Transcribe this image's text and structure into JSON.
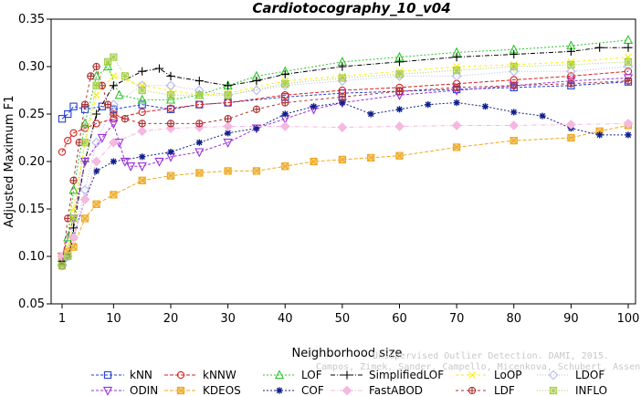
{
  "chart_data": {
    "type": "line",
    "title": "Cardiotocography_10_v04",
    "xlabel": "Neighborhood size",
    "ylabel": "Adjusted Maximum F1",
    "xlim": [
      1,
      100
    ],
    "ylim": [
      0.05,
      0.35
    ],
    "xticks": [
      1,
      10,
      20,
      30,
      40,
      50,
      60,
      70,
      80,
      90,
      100
    ],
    "yticks": [
      0.05,
      0.1,
      0.15,
      0.2,
      0.25,
      0.3,
      0.35
    ],
    "ytick_labels": [
      "0.05",
      "0.10",
      "0.15",
      "0.20",
      "0.25",
      "0.30",
      "0.35"
    ],
    "grid": false,
    "legend_position": "bottom",
    "watermark": {
      "line1": "Unsupervised Outlier Detection. DAMI, 2015.",
      "line2": "Campos, Zimek, Sander, Campello, Micenkova, Schubert, Assent, Houle"
    },
    "series": [
      {
        "name": "kNN",
        "color": "#1f3fd6",
        "marker": "square",
        "points": [
          [
            1,
            0.245
          ],
          [
            2,
            0.25
          ],
          [
            3,
            0.258
          ],
          [
            5,
            0.255
          ],
          [
            8,
            0.258
          ],
          [
            10,
            0.255
          ],
          [
            15,
            0.26
          ],
          [
            20,
            0.255
          ],
          [
            25,
            0.26
          ],
          [
            30,
            0.262
          ],
          [
            40,
            0.268
          ],
          [
            50,
            0.272
          ],
          [
            60,
            0.274
          ],
          [
            70,
            0.276
          ],
          [
            80,
            0.278
          ],
          [
            90,
            0.28
          ],
          [
            100,
            0.284
          ]
        ]
      },
      {
        "name": "kNNW",
        "color": "#d92020",
        "marker": "circle",
        "points": [
          [
            1,
            0.21
          ],
          [
            2,
            0.222
          ],
          [
            3,
            0.23
          ],
          [
            5,
            0.235
          ],
          [
            7,
            0.24
          ],
          [
            10,
            0.245
          ],
          [
            15,
            0.252
          ],
          [
            20,
            0.256
          ],
          [
            25,
            0.26
          ],
          [
            30,
            0.262
          ],
          [
            40,
            0.27
          ],
          [
            50,
            0.275
          ],
          [
            60,
            0.278
          ],
          [
            70,
            0.282
          ],
          [
            80,
            0.286
          ],
          [
            90,
            0.29
          ],
          [
            100,
            0.295
          ]
        ]
      },
      {
        "name": "LOF",
        "color": "#2fc42f",
        "marker": "triangle-up",
        "points": [
          [
            1,
            0.095
          ],
          [
            2,
            0.12
          ],
          [
            3,
            0.17
          ],
          [
            5,
            0.24
          ],
          [
            7,
            0.29
          ],
          [
            9,
            0.3
          ],
          [
            11,
            0.27
          ],
          [
            15,
            0.265
          ],
          [
            20,
            0.265
          ],
          [
            25,
            0.27
          ],
          [
            30,
            0.28
          ],
          [
            35,
            0.29
          ],
          [
            40,
            0.295
          ],
          [
            50,
            0.305
          ],
          [
            60,
            0.31
          ],
          [
            70,
            0.315
          ],
          [
            80,
            0.318
          ],
          [
            90,
            0.322
          ],
          [
            100,
            0.328
          ]
        ]
      },
      {
        "name": "SimplifiedLOF",
        "color": "#000000",
        "marker": "plus",
        "points": [
          [
            1,
            0.095
          ],
          [
            2,
            0.1
          ],
          [
            3,
            0.13
          ],
          [
            5,
            0.2
          ],
          [
            7,
            0.25
          ],
          [
            10,
            0.28
          ],
          [
            15,
            0.295
          ],
          [
            18,
            0.298
          ],
          [
            20,
            0.29
          ],
          [
            25,
            0.285
          ],
          [
            30,
            0.28
          ],
          [
            35,
            0.285
          ],
          [
            40,
            0.292
          ],
          [
            50,
            0.3
          ],
          [
            60,
            0.305
          ],
          [
            70,
            0.31
          ],
          [
            80,
            0.313
          ],
          [
            90,
            0.316
          ],
          [
            95,
            0.32
          ],
          [
            100,
            0.32
          ]
        ]
      },
      {
        "name": "LoOP",
        "color": "#ffee00",
        "marker": "x",
        "points": [
          [
            1,
            0.09
          ],
          [
            2,
            0.11
          ],
          [
            3,
            0.15
          ],
          [
            5,
            0.22
          ],
          [
            7,
            0.27
          ],
          [
            10,
            0.29
          ],
          [
            15,
            0.28
          ],
          [
            20,
            0.275
          ],
          [
            25,
            0.27
          ],
          [
            30,
            0.272
          ],
          [
            40,
            0.285
          ],
          [
            50,
            0.29
          ],
          [
            60,
            0.295
          ],
          [
            70,
            0.3
          ],
          [
            80,
            0.302
          ],
          [
            90,
            0.305
          ],
          [
            100,
            0.31
          ]
        ]
      },
      {
        "name": "LDOF",
        "color": "#b8b8f0",
        "marker": "diamond",
        "points": [
          [
            1,
            0.09
          ],
          [
            2,
            0.1
          ],
          [
            3,
            0.12
          ],
          [
            5,
            0.17
          ],
          [
            7,
            0.22
          ],
          [
            10,
            0.26
          ],
          [
            15,
            0.28
          ],
          [
            20,
            0.28
          ],
          [
            25,
            0.275
          ],
          [
            30,
            0.27
          ],
          [
            35,
            0.275
          ],
          [
            40,
            0.28
          ],
          [
            50,
            0.285
          ],
          [
            60,
            0.29
          ],
          [
            70,
            0.29
          ],
          [
            80,
            0.295
          ],
          [
            90,
            0.295
          ],
          [
            100,
            0.3
          ]
        ]
      },
      {
        "name": "ODIN",
        "color": "#9b30d9",
        "marker": "triangle-down",
        "points": [
          [
            1,
            0.1
          ],
          [
            3,
            0.14
          ],
          [
            5,
            0.2
          ],
          [
            8,
            0.225
          ],
          [
            10,
            0.24
          ],
          [
            11,
            0.22
          ],
          [
            12,
            0.2
          ],
          [
            13,
            0.195
          ],
          [
            15,
            0.195
          ],
          [
            18,
            0.2
          ],
          [
            20,
            0.205
          ],
          [
            25,
            0.21
          ],
          [
            30,
            0.22
          ],
          [
            35,
            0.235
          ],
          [
            40,
            0.245
          ],
          [
            45,
            0.255
          ],
          [
            50,
            0.262
          ],
          [
            60,
            0.27
          ],
          [
            70,
            0.275
          ],
          [
            80,
            0.28
          ],
          [
            90,
            0.285
          ],
          [
            100,
            0.288
          ]
        ]
      },
      {
        "name": "KDEOS",
        "color": "#f0a820",
        "marker": "square-x",
        "points": [
          [
            1,
            0.1
          ],
          [
            2,
            0.105
          ],
          [
            3,
            0.11
          ],
          [
            5,
            0.14
          ],
          [
            7,
            0.155
          ],
          [
            10,
            0.165
          ],
          [
            15,
            0.18
          ],
          [
            20,
            0.185
          ],
          [
            25,
            0.188
          ],
          [
            30,
            0.19
          ],
          [
            35,
            0.19
          ],
          [
            40,
            0.195
          ],
          [
            45,
            0.2
          ],
          [
            50,
            0.202
          ],
          [
            55,
            0.204
          ],
          [
            60,
            0.206
          ],
          [
            70,
            0.215
          ],
          [
            80,
            0.222
          ],
          [
            90,
            0.225
          ],
          [
            95,
            0.232
          ],
          [
            100,
            0.238
          ]
        ]
      },
      {
        "name": "COF",
        "color": "#10208a",
        "marker": "star",
        "points": [
          [
            1,
            0.092
          ],
          [
            2,
            0.1
          ],
          [
            3,
            0.12
          ],
          [
            5,
            0.16
          ],
          [
            7,
            0.19
          ],
          [
            10,
            0.2
          ],
          [
            15,
            0.205
          ],
          [
            20,
            0.21
          ],
          [
            25,
            0.22
          ],
          [
            30,
            0.23
          ],
          [
            35,
            0.235
          ],
          [
            40,
            0.25
          ],
          [
            45,
            0.258
          ],
          [
            50,
            0.262
          ],
          [
            55,
            0.25
          ],
          [
            60,
            0.255
          ],
          [
            65,
            0.26
          ],
          [
            70,
            0.262
          ],
          [
            75,
            0.258
          ],
          [
            80,
            0.252
          ],
          [
            85,
            0.248
          ],
          [
            90,
            0.235
          ],
          [
            95,
            0.228
          ],
          [
            100,
            0.228
          ]
        ]
      },
      {
        "name": "FastABOD",
        "color": "#f5b8e0",
        "marker": "diamond-filled",
        "points": [
          [
            1,
            0.1
          ],
          [
            3,
            0.12
          ],
          [
            5,
            0.16
          ],
          [
            7,
            0.2
          ],
          [
            10,
            0.22
          ],
          [
            15,
            0.232
          ],
          [
            20,
            0.235
          ],
          [
            25,
            0.236
          ],
          [
            30,
            0.237
          ],
          [
            40,
            0.237
          ],
          [
            50,
            0.236
          ],
          [
            60,
            0.237
          ],
          [
            70,
            0.238
          ],
          [
            80,
            0.238
          ],
          [
            90,
            0.239
          ],
          [
            100,
            0.24
          ]
        ]
      },
      {
        "name": "LDF",
        "color": "#b03030",
        "marker": "circle-plus",
        "points": [
          [
            1,
            0.09
          ],
          [
            2,
            0.14
          ],
          [
            3,
            0.18
          ],
          [
            4,
            0.22
          ],
          [
            5,
            0.26
          ],
          [
            6,
            0.29
          ],
          [
            7,
            0.3
          ],
          [
            8,
            0.28
          ],
          [
            9,
            0.26
          ],
          [
            10,
            0.25
          ],
          [
            12,
            0.245
          ],
          [
            15,
            0.24
          ],
          [
            20,
            0.24
          ],
          [
            25,
            0.24
          ],
          [
            30,
            0.245
          ],
          [
            35,
            0.255
          ],
          [
            40,
            0.262
          ],
          [
            50,
            0.268
          ],
          [
            60,
            0.274
          ],
          [
            70,
            0.278
          ],
          [
            80,
            0.28
          ],
          [
            90,
            0.282
          ],
          [
            100,
            0.285
          ]
        ]
      },
      {
        "name": "INFLO",
        "color": "#a8d04a",
        "marker": "star-square",
        "points": [
          [
            1,
            0.09
          ],
          [
            2,
            0.1
          ],
          [
            3,
            0.14
          ],
          [
            5,
            0.22
          ],
          [
            7,
            0.28
          ],
          [
            9,
            0.305
          ],
          [
            10,
            0.31
          ],
          [
            12,
            0.29
          ],
          [
            15,
            0.275
          ],
          [
            20,
            0.27
          ],
          [
            25,
            0.27
          ],
          [
            30,
            0.27
          ],
          [
            40,
            0.282
          ],
          [
            50,
            0.288
          ],
          [
            60,
            0.292
          ],
          [
            70,
            0.296
          ],
          [
            80,
            0.3
          ],
          [
            90,
            0.302
          ],
          [
            100,
            0.305
          ]
        ]
      }
    ]
  }
}
